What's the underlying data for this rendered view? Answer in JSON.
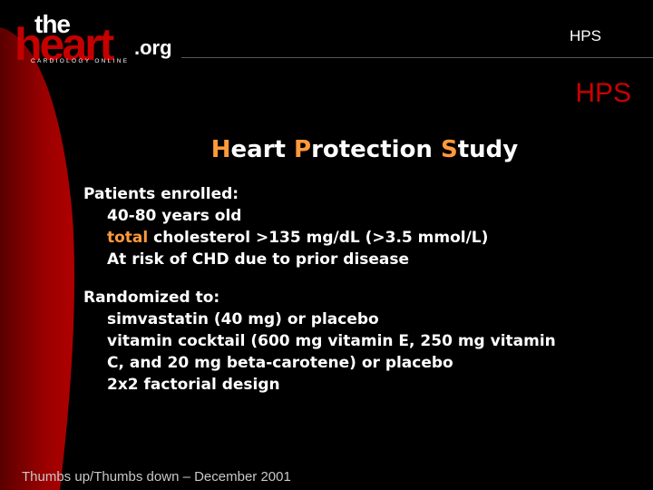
{
  "logo": {
    "the": "the",
    "heart": "heart",
    "org": ".org",
    "tagline": "CARDIOLOGY ONLINE"
  },
  "header": {
    "label": "HPS",
    "slide_code": "HPS"
  },
  "title": {
    "part1_cap": "H",
    "part1_rest": "eart ",
    "part2_cap": "P",
    "part2_rest": "rotection ",
    "part3_cap": "S",
    "part3_rest": "tudy"
  },
  "enrolled": {
    "heading": "Patients enrolled:",
    "age": "40-80 years old",
    "chol_highlight": "total",
    "chol_rest": " cholesterol >135 mg/dL (>3.5 mmol/L)",
    "risk": "At risk of CHD due to prior disease"
  },
  "randomized": {
    "heading": "Randomized to:",
    "items": [
      "simvastatin (40 mg) or placebo",
      "vitamin cocktail (600 mg vitamin E, 250 mg vitamin",
      "C, and 20 mg beta-carotene) or placebo",
      "2x2 factorial design"
    ]
  },
  "footer": {
    "text": "Thumbs up/Thumbs down – December 2001"
  },
  "colors": {
    "accent_red": "#cc0000",
    "highlight_orange": "#ff9a3c",
    "background": "#000000"
  }
}
